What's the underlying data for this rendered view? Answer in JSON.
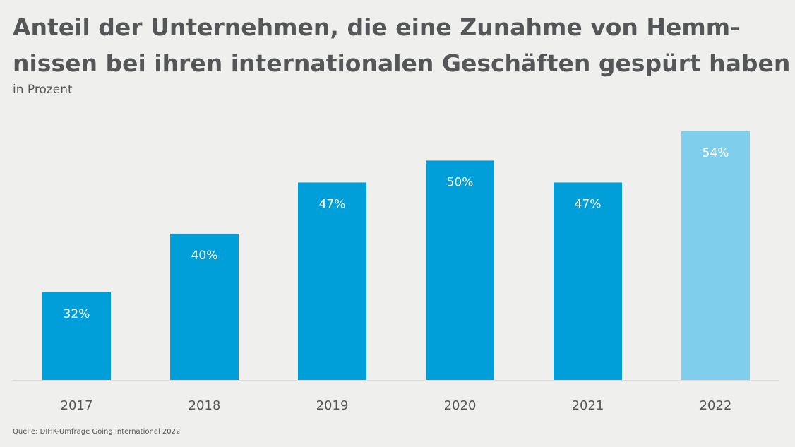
{
  "chart_data": {
    "type": "bar",
    "title": [
      "Anteil der Unternehmen, die eine Zunahme von Hemm-",
      "nissen bei ihren internationalen Geschäften gespürt haben"
    ],
    "subtitle": "in Prozent",
    "categories": [
      "2017",
      "2018",
      "2019",
      "2020",
      "2021",
      "2022"
    ],
    "values": [
      32,
      40,
      47,
      50,
      47,
      54
    ],
    "value_labels": [
      "32%",
      "40%",
      "47%",
      "50%",
      "47%",
      "54%"
    ],
    "colors": [
      "#009fd9",
      "#009fd9",
      "#009fd9",
      "#009fd9",
      "#009fd9",
      "#7fcfec"
    ],
    "ylim": [
      20,
      54
    ],
    "source": "Quelle: DIHK-Umfrage Going International 2022"
  }
}
